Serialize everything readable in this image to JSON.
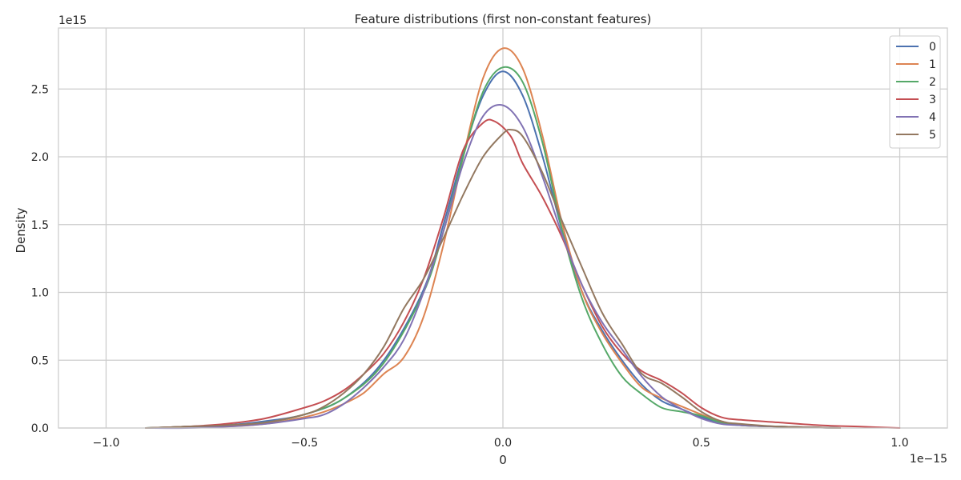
{
  "chart_data": {
    "type": "line",
    "title": "Feature distributions (first non-constant features)",
    "xlabel": "0",
    "ylabel": "Density",
    "x_offset_label": "1e−15",
    "y_offset_label": "1e15",
    "xlim": [
      -1.12,
      1.12
    ],
    "ylim": [
      0,
      2.95
    ],
    "xticks": [
      -1.0,
      -0.5,
      0.0,
      0.5,
      1.0
    ],
    "xtick_labels": [
      "−1.0",
      "−0.5",
      "0.0",
      "0.5",
      "1.0"
    ],
    "yticks": [
      0.0,
      0.5,
      1.0,
      1.5,
      2.0,
      2.5
    ],
    "ytick_labels": [
      "0.0",
      "0.5",
      "1.0",
      "1.5",
      "2.0",
      "2.5"
    ],
    "grid": true,
    "legend_position": "top-right",
    "series": [
      {
        "name": "0",
        "color": "#4c72b0",
        "points": [
          [
            -0.9,
            0.0
          ],
          [
            -0.8,
            0.01
          ],
          [
            -0.7,
            0.02
          ],
          [
            -0.6,
            0.05
          ],
          [
            -0.5,
            0.1
          ],
          [
            -0.4,
            0.22
          ],
          [
            -0.3,
            0.5
          ],
          [
            -0.2,
            1.02
          ],
          [
            -0.15,
            1.5
          ],
          [
            -0.1,
            2.02
          ],
          [
            -0.05,
            2.45
          ],
          [
            0.0,
            2.63
          ],
          [
            0.05,
            2.45
          ],
          [
            0.1,
            2.0
          ],
          [
            0.15,
            1.45
          ],
          [
            0.2,
            1.0
          ],
          [
            0.25,
            0.72
          ],
          [
            0.3,
            0.5
          ],
          [
            0.35,
            0.32
          ],
          [
            0.4,
            0.2
          ],
          [
            0.45,
            0.14
          ],
          [
            0.5,
            0.08
          ],
          [
            0.55,
            0.04
          ],
          [
            0.6,
            0.02
          ],
          [
            0.7,
            0.01
          ],
          [
            0.85,
            0.0
          ]
        ]
      },
      {
        "name": "1",
        "color": "#dd8452",
        "points": [
          [
            -0.85,
            0.0
          ],
          [
            -0.7,
            0.01
          ],
          [
            -0.6,
            0.03
          ],
          [
            -0.5,
            0.08
          ],
          [
            -0.45,
            0.12
          ],
          [
            -0.4,
            0.18
          ],
          [
            -0.35,
            0.26
          ],
          [
            -0.3,
            0.4
          ],
          [
            -0.25,
            0.52
          ],
          [
            -0.2,
            0.82
          ],
          [
            -0.15,
            1.35
          ],
          [
            -0.1,
            2.0
          ],
          [
            -0.05,
            2.58
          ],
          [
            0.0,
            2.8
          ],
          [
            0.05,
            2.65
          ],
          [
            0.1,
            2.15
          ],
          [
            0.15,
            1.5
          ],
          [
            0.2,
            1.0
          ],
          [
            0.25,
            0.7
          ],
          [
            0.3,
            0.48
          ],
          [
            0.35,
            0.3
          ],
          [
            0.4,
            0.22
          ],
          [
            0.45,
            0.16
          ],
          [
            0.5,
            0.1
          ],
          [
            0.55,
            0.05
          ],
          [
            0.6,
            0.02
          ],
          [
            0.7,
            0.01
          ],
          [
            0.85,
            0.0
          ]
        ]
      },
      {
        "name": "2",
        "color": "#55a868",
        "points": [
          [
            -0.9,
            0.0
          ],
          [
            -0.8,
            0.01
          ],
          [
            -0.7,
            0.02
          ],
          [
            -0.6,
            0.04
          ],
          [
            -0.5,
            0.1
          ],
          [
            -0.4,
            0.22
          ],
          [
            -0.3,
            0.48
          ],
          [
            -0.2,
            1.0
          ],
          [
            -0.15,
            1.45
          ],
          [
            -0.1,
            2.0
          ],
          [
            -0.05,
            2.48
          ],
          [
            0.0,
            2.66
          ],
          [
            0.05,
            2.55
          ],
          [
            0.1,
            2.1
          ],
          [
            0.15,
            1.45
          ],
          [
            0.2,
            0.95
          ],
          [
            0.25,
            0.62
          ],
          [
            0.3,
            0.38
          ],
          [
            0.35,
            0.25
          ],
          [
            0.4,
            0.15
          ],
          [
            0.45,
            0.12
          ],
          [
            0.5,
            0.09
          ],
          [
            0.55,
            0.04
          ],
          [
            0.6,
            0.02
          ],
          [
            0.7,
            0.01
          ],
          [
            0.85,
            0.0
          ]
        ]
      },
      {
        "name": "3",
        "color": "#c44e52",
        "points": [
          [
            -0.9,
            0.0
          ],
          [
            -0.8,
            0.01
          ],
          [
            -0.7,
            0.03
          ],
          [
            -0.6,
            0.07
          ],
          [
            -0.5,
            0.15
          ],
          [
            -0.45,
            0.2
          ],
          [
            -0.4,
            0.28
          ],
          [
            -0.35,
            0.4
          ],
          [
            -0.3,
            0.55
          ],
          [
            -0.25,
            0.78
          ],
          [
            -0.2,
            1.1
          ],
          [
            -0.15,
            1.55
          ],
          [
            -0.1,
            2.05
          ],
          [
            -0.05,
            2.25
          ],
          [
            -0.02,
            2.26
          ],
          [
            0.02,
            2.15
          ],
          [
            0.05,
            1.95
          ],
          [
            0.1,
            1.7
          ],
          [
            0.15,
            1.4
          ],
          [
            0.2,
            1.05
          ],
          [
            0.25,
            0.75
          ],
          [
            0.3,
            0.55
          ],
          [
            0.35,
            0.42
          ],
          [
            0.4,
            0.35
          ],
          [
            0.45,
            0.26
          ],
          [
            0.5,
            0.15
          ],
          [
            0.55,
            0.08
          ],
          [
            0.6,
            0.06
          ],
          [
            0.7,
            0.04
          ],
          [
            0.8,
            0.02
          ],
          [
            0.9,
            0.01
          ],
          [
            1.0,
            0.0
          ]
        ]
      },
      {
        "name": "4",
        "color": "#8172b3",
        "points": [
          [
            -0.9,
            0.0
          ],
          [
            -0.8,
            0.0
          ],
          [
            -0.7,
            0.01
          ],
          [
            -0.6,
            0.03
          ],
          [
            -0.5,
            0.07
          ],
          [
            -0.45,
            0.1
          ],
          [
            -0.4,
            0.18
          ],
          [
            -0.35,
            0.3
          ],
          [
            -0.3,
            0.45
          ],
          [
            -0.25,
            0.65
          ],
          [
            -0.2,
            1.0
          ],
          [
            -0.15,
            1.45
          ],
          [
            -0.1,
            1.95
          ],
          [
            -0.05,
            2.3
          ],
          [
            0.0,
            2.38
          ],
          [
            0.05,
            2.22
          ],
          [
            0.1,
            1.85
          ],
          [
            0.15,
            1.42
          ],
          [
            0.2,
            1.05
          ],
          [
            0.25,
            0.78
          ],
          [
            0.3,
            0.58
          ],
          [
            0.35,
            0.38
          ],
          [
            0.4,
            0.23
          ],
          [
            0.45,
            0.14
          ],
          [
            0.5,
            0.07
          ],
          [
            0.55,
            0.03
          ],
          [
            0.6,
            0.02
          ],
          [
            0.7,
            0.01
          ],
          [
            0.85,
            0.0
          ]
        ]
      },
      {
        "name": "5",
        "color": "#937860",
        "points": [
          [
            -0.9,
            0.0
          ],
          [
            -0.8,
            0.01
          ],
          [
            -0.7,
            0.02
          ],
          [
            -0.6,
            0.04
          ],
          [
            -0.5,
            0.1
          ],
          [
            -0.45,
            0.16
          ],
          [
            -0.4,
            0.26
          ],
          [
            -0.35,
            0.4
          ],
          [
            -0.3,
            0.6
          ],
          [
            -0.25,
            0.88
          ],
          [
            -0.2,
            1.1
          ],
          [
            -0.15,
            1.4
          ],
          [
            -0.1,
            1.72
          ],
          [
            -0.05,
            2.0
          ],
          [
            0.0,
            2.17
          ],
          [
            0.02,
            2.2
          ],
          [
            0.05,
            2.15
          ],
          [
            0.1,
            1.88
          ],
          [
            0.15,
            1.52
          ],
          [
            0.2,
            1.18
          ],
          [
            0.25,
            0.85
          ],
          [
            0.3,
            0.62
          ],
          [
            0.35,
            0.4
          ],
          [
            0.4,
            0.33
          ],
          [
            0.45,
            0.23
          ],
          [
            0.5,
            0.12
          ],
          [
            0.55,
            0.05
          ],
          [
            0.6,
            0.03
          ],
          [
            0.7,
            0.01
          ],
          [
            0.85,
            0.0
          ]
        ]
      }
    ]
  }
}
